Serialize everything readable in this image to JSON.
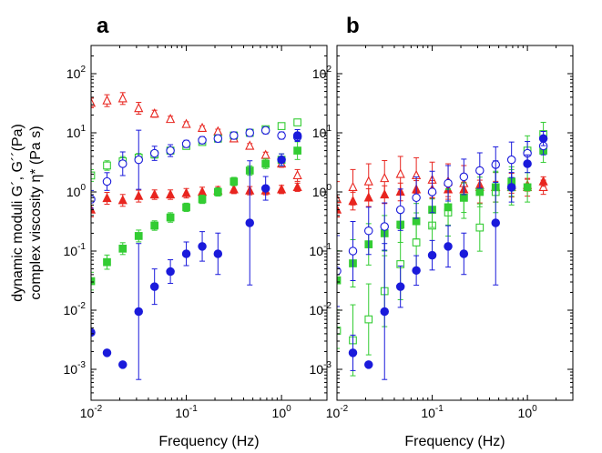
{
  "figure": {
    "ylabel_line1": "dynamic moduli G´, G´´(Pa)",
    "ylabel_line2": "complex viscosity η* (Pa s)"
  },
  "chart_data": [
    {
      "panel": "a",
      "type": "scatter",
      "xlabel": "Frequency (Hz)",
      "xscale": "log",
      "yscale": "log",
      "xlim": [
        0.01,
        3.0
      ],
      "ylim": [
        0.0003,
        300
      ],
      "xticks": [
        0.01,
        0.1,
        1
      ],
      "yticks": [
        0.001,
        0.01,
        0.1,
        1,
        10,
        100
      ],
      "grid": false,
      "legend": "none",
      "series": [
        {
          "marker": "open-triangle",
          "color": "#e8251f",
          "x": [
            0.01,
            0.0147,
            0.0215,
            0.0316,
            0.0464,
            0.0681,
            0.1,
            0.147,
            0.215,
            0.316,
            0.464,
            0.681,
            1.0,
            1.47
          ],
          "y": [
            32,
            35,
            38,
            26,
            21,
            17,
            14,
            12,
            10.5,
            8.0,
            6.0,
            4.2,
            3.0,
            1.9
          ],
          "err": [
            0.08,
            0.1,
            0.1,
            0.1,
            0.06,
            0.05,
            0.04,
            0.04,
            0.04,
            0.04,
            0.04,
            0.05,
            0.06,
            0.1
          ]
        },
        {
          "marker": "filled-triangle",
          "color": "#e8251f",
          "x": [
            0.01,
            0.0147,
            0.0215,
            0.0316,
            0.0464,
            0.0681,
            0.1,
            0.147,
            0.215,
            0.316,
            0.464,
            0.681,
            1.0,
            1.47
          ],
          "y": [
            0.5,
            0.78,
            0.72,
            0.85,
            0.9,
            0.9,
            0.95,
            1.0,
            1.05,
            1.1,
            1.05,
            1.05,
            1.1,
            1.2
          ],
          "err": [
            0.12,
            0.1,
            0.1,
            0.1,
            0.08,
            0.08,
            0.08,
            0.08,
            0.07,
            0.07,
            0.07,
            0.07,
            0.07,
            0.07
          ]
        },
        {
          "marker": "open-square",
          "color": "#33cc33",
          "x": [
            0.01,
            0.0147,
            0.0215,
            0.0316,
            0.0464,
            0.0681,
            0.1,
            0.147,
            0.215,
            0.316,
            0.464,
            0.681,
            1.0,
            1.47
          ],
          "y": [
            1.9,
            2.8,
            3.3,
            3.8,
            4.3,
            5.0,
            6.0,
            7.0,
            8.0,
            9.0,
            10.0,
            11.5,
            13,
            15
          ],
          "err": [
            0.1,
            0.08,
            0.08,
            0.07,
            0.06,
            0.06,
            0.05,
            0.05,
            0.05,
            0.05,
            0.05,
            0.05,
            0.05,
            0.05
          ]
        },
        {
          "marker": "filled-square",
          "color": "#33cc33",
          "x": [
            0.01,
            0.0147,
            0.0215,
            0.0316,
            0.0464,
            0.0681,
            0.1,
            0.147,
            0.215,
            0.316,
            0.464,
            0.681,
            1.0,
            1.47
          ],
          "y": [
            0.031,
            0.065,
            0.11,
            0.18,
            0.27,
            0.37,
            0.55,
            0.75,
            1.0,
            1.5,
            2.3,
            3.0,
            3.5,
            5.0
          ],
          "err": [
            0.15,
            0.12,
            0.1,
            0.1,
            0.08,
            0.08,
            0.07,
            0.07,
            0.07,
            0.07,
            0.08,
            0.08,
            0.1,
            0.15
          ]
        },
        {
          "marker": "open-circle",
          "color": "#1a1adb",
          "x": [
            0.01,
            0.0147,
            0.0215,
            0.0316,
            0.0464,
            0.0681,
            0.1,
            0.147,
            0.215,
            0.316,
            0.464,
            0.681,
            1.0,
            1.47
          ],
          "y": [
            0.75,
            1.5,
            3.0,
            3.5,
            4.5,
            5.0,
            6.5,
            7.5,
            8.0,
            9.0,
            10,
            11,
            9.0,
            8.5
          ],
          "err": [
            0.15,
            0.15,
            0.2,
            0.5,
            0.12,
            0.1,
            0.06,
            0.06,
            0.06,
            0.06,
            0.06,
            0.06,
            0.06,
            0.06
          ]
        },
        {
          "marker": "filled-circle",
          "color": "#1a1adb",
          "x": [
            0.01,
            0.0147,
            0.0215,
            0.0316,
            0.0464,
            0.0681,
            0.1,
            0.147,
            0.215,
            0.316,
            0.464,
            0.681,
            1.0,
            1.47
          ],
          "y": [
            0.0042,
            0.0019,
            0.0012,
            0.0095,
            0.025,
            0.045,
            0.09,
            0.12,
            0.09,
            null,
            0.3,
            1.15,
            3.5,
            9.0
          ],
          "err": [
            0,
            0,
            0,
            1.15,
            0.3,
            0.2,
            0.2,
            0.25,
            0.35,
            0,
            1.05,
            0.2,
            0.1,
            0.1
          ]
        }
      ]
    },
    {
      "panel": "b",
      "type": "scatter",
      "xlabel": "Frequency (Hz)",
      "xscale": "log",
      "yscale": "log",
      "xlim": [
        0.01,
        3.0
      ],
      "ylim": [
        0.0003,
        300
      ],
      "xticks": [
        0.01,
        0.1,
        1
      ],
      "yticks": [
        0.001,
        0.01,
        0.1,
        1,
        10,
        100
      ],
      "grid": false,
      "legend": "none",
      "series": [
        {
          "marker": "open-triangle",
          "color": "#e8251f",
          "x": [
            0.01,
            0.0147,
            0.0215,
            0.0316,
            0.0464,
            0.0681,
            0.1,
            0.147,
            0.215,
            0.316,
            0.464,
            0.681,
            1.0,
            1.47
          ],
          "y": [
            0.75,
            1.2,
            1.5,
            1.7,
            2.0,
            1.9,
            1.6,
            1.5,
            1.4,
            1.3,
            1.2,
            1.3,
            1.2,
            1.2
          ],
          "err": [
            0.3,
            0.3,
            0.3,
            0.3,
            0.3,
            0.3,
            0.3,
            0.3,
            0.3,
            0.3,
            0.25,
            0.2,
            0.15,
            0.12
          ]
        },
        {
          "marker": "filled-triangle",
          "color": "#e8251f",
          "x": [
            0.01,
            0.0147,
            0.0215,
            0.0316,
            0.0464,
            0.0681,
            0.1,
            0.147,
            0.215,
            0.316,
            0.464,
            0.681,
            1.0,
            1.47
          ],
          "y": [
            0.5,
            0.7,
            0.8,
            0.9,
            1.0,
            1.1,
            1.1,
            1.1,
            1.1,
            1.2,
            1.2,
            1.2,
            1.3,
            1.5
          ],
          "err": [
            0.12,
            0.15,
            0.15,
            0.15,
            0.15,
            0.15,
            0.15,
            0.12,
            0.12,
            0.12,
            0.1,
            0.1,
            0.1,
            0.08
          ]
        },
        {
          "marker": "open-square",
          "color": "#33cc33",
          "x": [
            0.01,
            0.0147,
            0.0215,
            0.0316,
            0.0464,
            0.0681,
            0.1,
            0.147,
            0.215,
            0.316,
            0.464,
            0.681,
            1.0,
            1.47
          ],
          "y": [
            0.0045,
            0.0031,
            0.007,
            0.021,
            0.06,
            0.14,
            0.27,
            0.45,
            0.8,
            0.25,
            1.0,
            1.2,
            5.0,
            9.5
          ],
          "err": [
            0.3,
            0.6,
            0.6,
            0.6,
            0.6,
            0.5,
            0.45,
            0.4,
            0.35,
            0.4,
            0.35,
            0.3,
            0.25,
            0.2
          ]
        },
        {
          "marker": "filled-square",
          "color": "#33cc33",
          "x": [
            0.01,
            0.0147,
            0.0215,
            0.0316,
            0.0464,
            0.0681,
            0.1,
            0.147,
            0.215,
            0.316,
            0.464,
            0.681,
            1.0,
            1.47
          ],
          "y": [
            0.032,
            0.062,
            0.13,
            0.2,
            0.28,
            0.32,
            0.5,
            0.55,
            0.8,
            1.0,
            1.2,
            1.5,
            1.2,
            5.0
          ],
          "err": [
            0.5,
            0.4,
            0.35,
            0.3,
            0.3,
            0.3,
            0.3,
            0.3,
            0.25,
            0.25,
            0.25,
            0.25,
            0.25,
            0.2
          ]
        },
        {
          "marker": "open-circle",
          "color": "#1a1adb",
          "x": [
            0.01,
            0.0147,
            0.0215,
            0.0316,
            0.0464,
            0.0681,
            0.1,
            0.147,
            0.215,
            0.316,
            0.464,
            0.681,
            1.0,
            1.47
          ],
          "y": [
            0.046,
            0.1,
            0.22,
            0.26,
            0.5,
            0.8,
            1.0,
            1.4,
            1.8,
            2.3,
            2.9,
            3.5,
            4.5,
            6.0
          ],
          "err": [
            0.6,
            0.5,
            0.4,
            0.4,
            0.35,
            0.35,
            0.35,
            0.3,
            0.3,
            0.3,
            0.3,
            0.3,
            0.2,
            0.15
          ]
        },
        {
          "marker": "filled-circle",
          "color": "#1a1adb",
          "x": [
            0.01,
            0.0147,
            0.0215,
            0.0316,
            0.0464,
            0.0681,
            0.1,
            0.147,
            0.215,
            0.316,
            0.464,
            0.681,
            1.0,
            1.47
          ],
          "y": [
            null,
            0.0019,
            0.0012,
            0.0095,
            0.025,
            0.047,
            0.085,
            0.12,
            0.09,
            null,
            0.3,
            1.2,
            3.0,
            8.0
          ],
          "err": [
            0,
            0.3,
            0,
            1.15,
            0.35,
            0.25,
            0.25,
            0.35,
            0.35,
            0,
            1.05,
            0.25,
            0.15,
            0.12
          ]
        }
      ]
    }
  ]
}
